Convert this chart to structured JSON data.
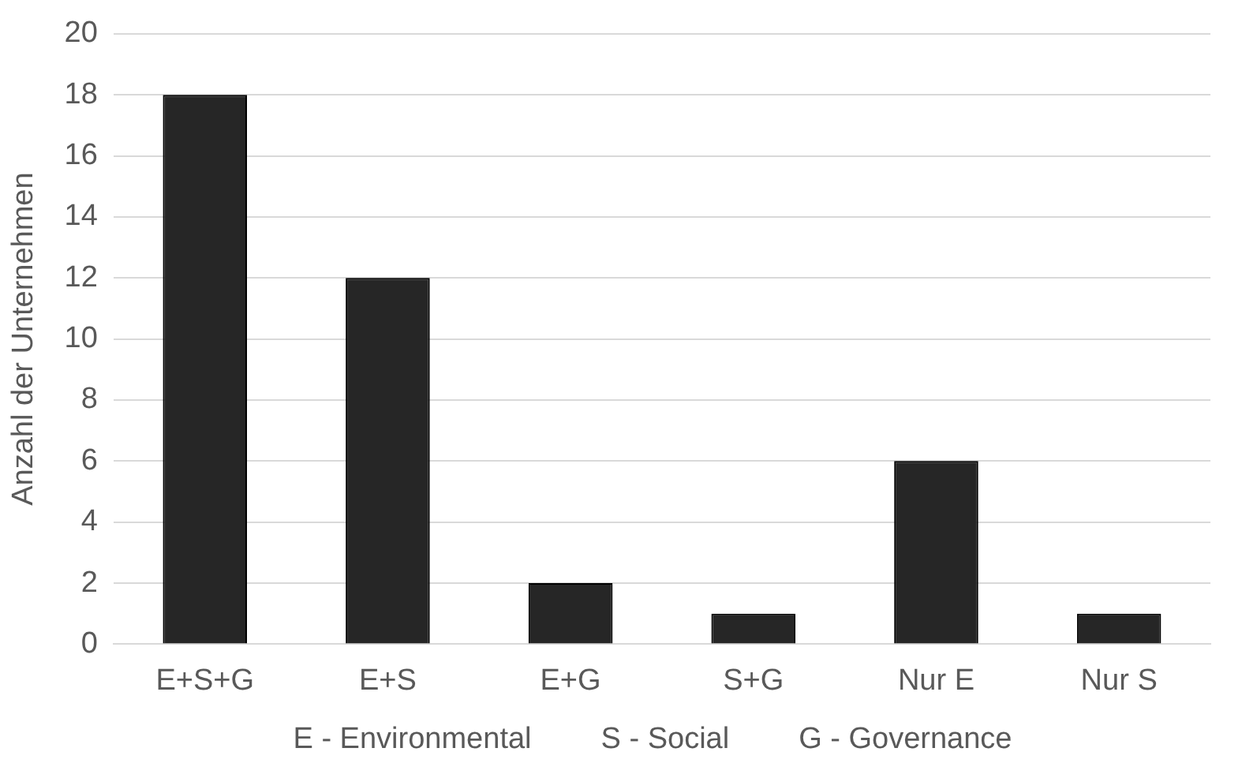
{
  "chart_data": {
    "type": "bar",
    "ylabel": "Anzahl der Unternehmen",
    "categories": [
      "E+S+G",
      "E+S",
      "E+G",
      "S+G",
      "Nur E",
      "Nur S"
    ],
    "values": [
      18,
      12,
      2,
      1,
      6,
      1
    ],
    "color": "#262626",
    "ylim": [
      0,
      20
    ],
    "yticks": [
      0,
      2,
      4,
      6,
      8,
      10,
      12,
      14,
      16,
      18,
      20
    ],
    "grid": "y",
    "legend": false,
    "annotations": [
      "E - Environmental",
      "S - Social",
      "G - Governance"
    ]
  }
}
